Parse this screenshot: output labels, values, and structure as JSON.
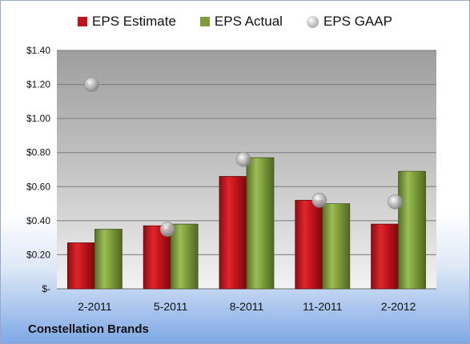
{
  "legend": {
    "estimate": "EPS Estimate",
    "actual": "EPS Actual",
    "gaap": "EPS GAAP"
  },
  "company": "Constellation Brands",
  "colors": {
    "estimate": "#c0141a",
    "actual": "#7d9d3a",
    "gaap": "#a8a8a8",
    "plot_bg": "#bdbdbd"
  },
  "chart_data": {
    "type": "bar",
    "categories": [
      "2-2011",
      "5-2011",
      "8-2011",
      "11-2011",
      "2-2012"
    ],
    "series": [
      {
        "name": "EPS Estimate",
        "values": [
          0.27,
          0.37,
          0.66,
          0.52,
          0.38
        ]
      },
      {
        "name": "EPS Actual",
        "values": [
          0.35,
          0.38,
          0.77,
          0.5,
          0.69
        ]
      },
      {
        "name": "EPS GAAP",
        "type": "scatter",
        "values": [
          1.2,
          0.35,
          0.76,
          0.52,
          0.51
        ]
      }
    ],
    "ylim": [
      0,
      1.4
    ],
    "yticks": [
      0,
      0.2,
      0.4,
      0.6,
      0.8,
      1.0,
      1.2,
      1.4
    ],
    "ytick_labels": [
      "$-",
      "$0.20",
      "$0.40",
      "$0.60",
      "$0.80",
      "$1.00",
      "$1.20",
      "$1.40"
    ],
    "grid": true,
    "legend_position": "top"
  }
}
